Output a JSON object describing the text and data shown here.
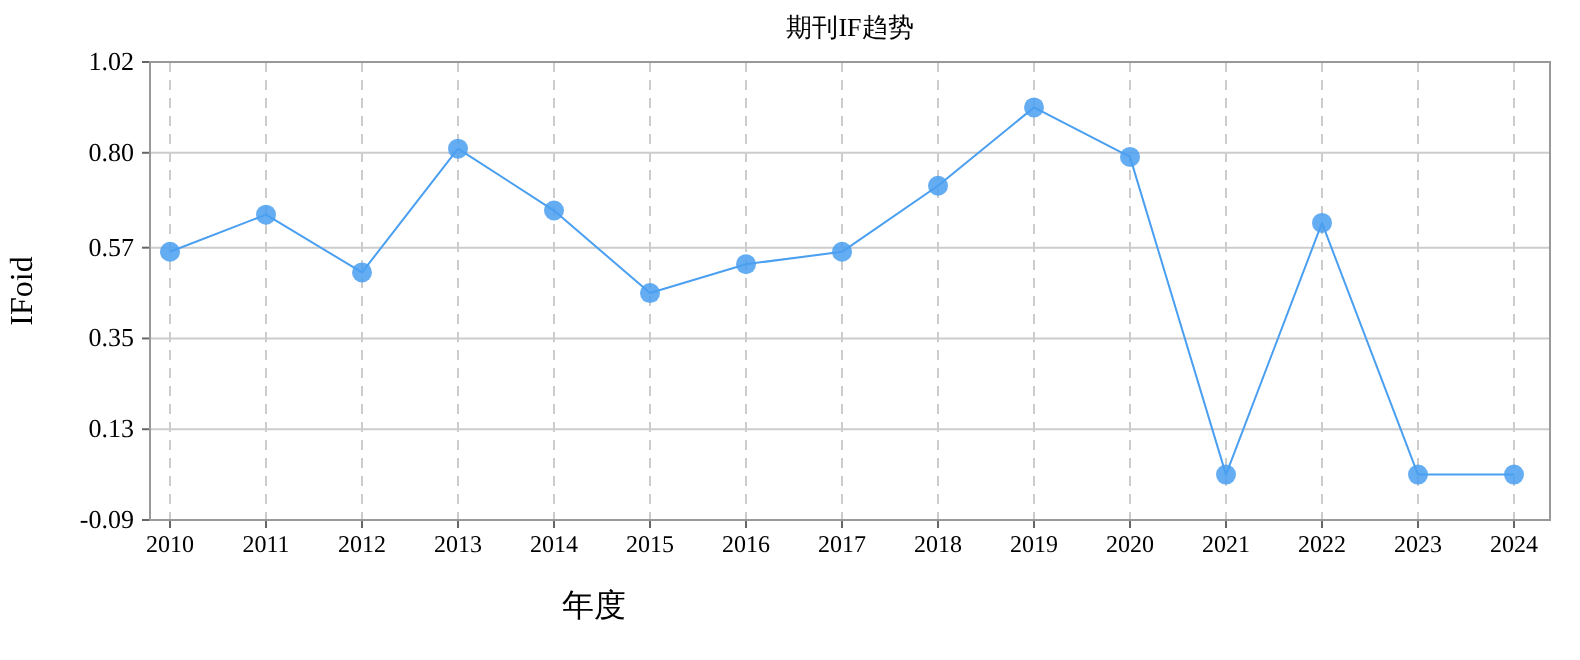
{
  "chart_data": {
    "type": "line",
    "title": "期刊IF趋势",
    "xlabel": "年度",
    "ylabel": "IFoid",
    "categories": [
      "2010",
      "2011",
      "2012",
      "2013",
      "2014",
      "2015",
      "2016",
      "2017",
      "2018",
      "2019",
      "2020",
      "2021",
      "2022",
      "2023",
      "2024"
    ],
    "series": [
      {
        "color": "#4a9ff0",
        "values": [
          0.56,
          0.65,
          0.51,
          0.81,
          0.66,
          0.46,
          0.53,
          0.56,
          0.72,
          0.91,
          0.79,
          0.02,
          0.63,
          0.02,
          0.02
        ]
      }
    ],
    "ylim": [
      -0.09,
      1.02
    ],
    "yticks": [
      -0.09,
      0.13,
      0.35,
      0.57,
      {
        "value": 0.8,
        "label": "0.80"
      },
      1.02
    ],
    "grid": true,
    "marker": "circle",
    "line_style": "solid"
  }
}
